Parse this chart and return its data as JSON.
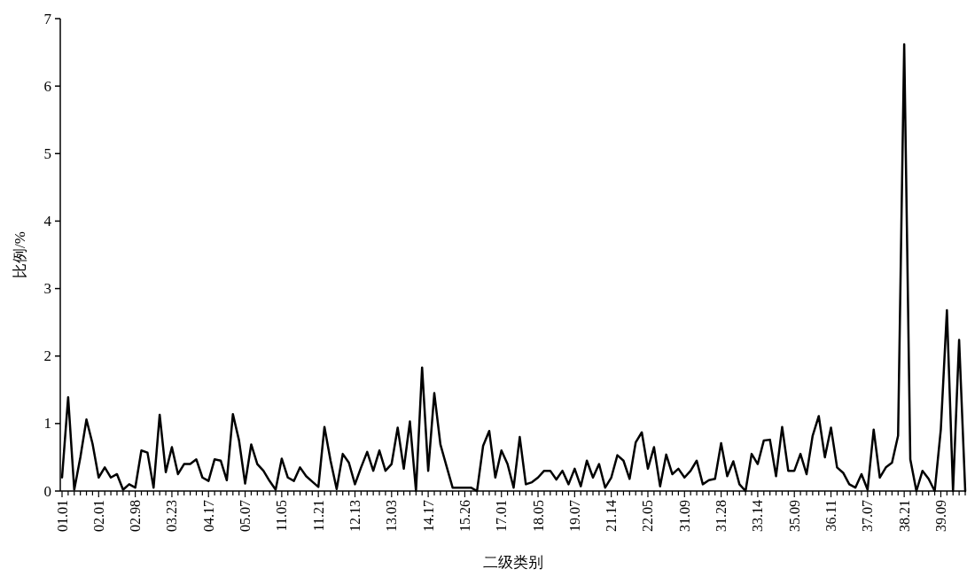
{
  "chart_data": {
    "type": "line",
    "xlabel": "二级类别",
    "ylabel": "比例/%",
    "color": "#000000",
    "ylim": [
      0,
      7
    ],
    "yticks": [
      0,
      1,
      2,
      3,
      4,
      5,
      6,
      7
    ],
    "categories": [
      "01.01",
      null,
      null,
      null,
      null,
      null,
      "02.01",
      null,
      null,
      null,
      null,
      null,
      "02.98",
      null,
      null,
      null,
      null,
      null,
      "03.23",
      null,
      null,
      null,
      null,
      null,
      "04.17",
      null,
      null,
      null,
      null,
      null,
      "05.07",
      null,
      null,
      null,
      null,
      null,
      "11.05",
      null,
      null,
      null,
      null,
      null,
      "11.21",
      null,
      null,
      null,
      null,
      null,
      "12.13",
      null,
      null,
      null,
      null,
      null,
      "13.03",
      null,
      null,
      null,
      null,
      null,
      "14.17",
      null,
      null,
      null,
      null,
      null,
      "15.26",
      null,
      null,
      null,
      null,
      null,
      "17.01",
      null,
      null,
      null,
      null,
      null,
      "18.05",
      null,
      null,
      null,
      null,
      null,
      "19.07",
      null,
      null,
      null,
      null,
      null,
      "21.14",
      null,
      null,
      null,
      null,
      null,
      "22.05",
      null,
      null,
      null,
      null,
      null,
      "31.09",
      null,
      null,
      null,
      null,
      null,
      "31.28",
      null,
      null,
      null,
      null,
      null,
      "33.14",
      null,
      null,
      null,
      null,
      null,
      "35.09",
      null,
      null,
      null,
      null,
      null,
      "36.11",
      null,
      null,
      null,
      null,
      null,
      "37.07",
      null,
      null,
      null,
      null,
      null,
      "38.21",
      null,
      null,
      null,
      null,
      null,
      "39.09",
      null,
      null,
      null,
      null
    ],
    "values": [
      0.2,
      1.39,
      0.02,
      0.5,
      1.06,
      0.7,
      0.2,
      0.35,
      0.2,
      0.25,
      0.02,
      0.1,
      0.05,
      0.6,
      0.57,
      0.05,
      1.13,
      0.28,
      0.65,
      0.25,
      0.4,
      0.4,
      0.47,
      0.2,
      0.15,
      0.47,
      0.45,
      0.16,
      1.14,
      0.75,
      0.11,
      0.69,
      0.4,
      0.3,
      0.15,
      0.02,
      0.48,
      0.2,
      0.15,
      0.35,
      0.22,
      0.14,
      0.06,
      0.95,
      0.45,
      0.03,
      0.55,
      0.42,
      0.1,
      0.35,
      0.58,
      0.3,
      0.6,
      0.3,
      0.4,
      0.94,
      0.33,
      1.03,
      0.0,
      1.83,
      0.3,
      1.45,
      0.69,
      0.37,
      0.05,
      0.05,
      0.05,
      0.05,
      0.0,
      0.67,
      0.89,
      0.2,
      0.6,
      0.4,
      0.05,
      0.8,
      0.1,
      0.13,
      0.2,
      0.3,
      0.3,
      0.17,
      0.3,
      0.1,
      0.33,
      0.07,
      0.45,
      0.2,
      0.4,
      0.05,
      0.2,
      0.53,
      0.45,
      0.18,
      0.72,
      0.87,
      0.33,
      0.65,
      0.07,
      0.54,
      0.25,
      0.33,
      0.2,
      0.3,
      0.45,
      0.1,
      0.16,
      0.18,
      0.71,
      0.22,
      0.44,
      0.1,
      0.0,
      0.55,
      0.4,
      0.75,
      0.76,
      0.22,
      0.95,
      0.3,
      0.3,
      0.55,
      0.25,
      0.82,
      1.11,
      0.5,
      0.94,
      0.35,
      0.27,
      0.1,
      0.05,
      0.25,
      0.02,
      0.91,
      0.2,
      0.35,
      0.42,
      0.82,
      6.62,
      0.47,
      0.0,
      0.3,
      0.18,
      0.0,
      0.91,
      2.68,
      0.0,
      2.24,
      0.0
    ]
  }
}
